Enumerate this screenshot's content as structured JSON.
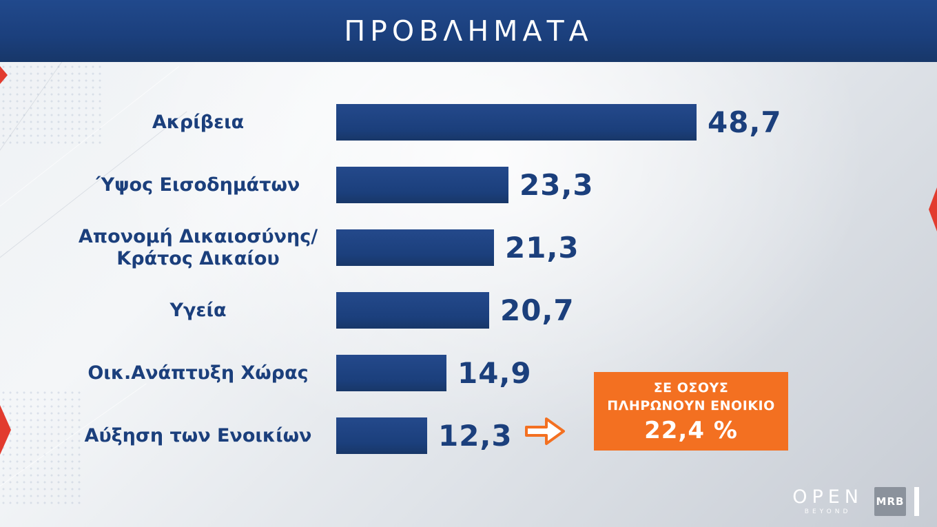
{
  "header": {
    "title": "ΠΡΟΒΛΗΜΑΤΑ"
  },
  "chart_data": {
    "type": "bar",
    "orientation": "horizontal",
    "title": "ΠΡΟΒΛΗΜΑΤΑ",
    "categories": [
      "Ακρίβεια",
      "Ύψος Εισοδημάτων",
      "Απονομή Δικαιοσύνης/\nΚράτος Δικαίου",
      "Υγεία",
      "Οικ.Ανάπτυξη Χώρας",
      "Αύξηση των Ενοικίων"
    ],
    "values": [
      48.7,
      23.3,
      21.3,
      20.7,
      14.9,
      12.3
    ],
    "value_labels": [
      "48,7",
      "23,3",
      "21,3",
      "20,7",
      "14,9",
      "12,3"
    ],
    "xlim": [
      0,
      50
    ],
    "bar_color": "#1b3f7c",
    "value_color": "#1b3f7c",
    "legend": "none",
    "grid": false,
    "annotation": {
      "applies_to": "Αύξηση των Ενοικίων",
      "lines": [
        "ΣΕ ΟΣΟΥΣ",
        "ΠΛΗΡΩΝΟΥΝ ΕΝΟΙΚΙΟ"
      ],
      "value": "22,4 %",
      "box_color": "#f37021"
    }
  },
  "footer": {
    "open_logo": "OPEN",
    "open_sub": "BEYOND",
    "mrb_logo": "MRB"
  },
  "accent_colors": {
    "navy": "#1b3f7c",
    "orange": "#f37021",
    "red": "#e23b2e"
  }
}
